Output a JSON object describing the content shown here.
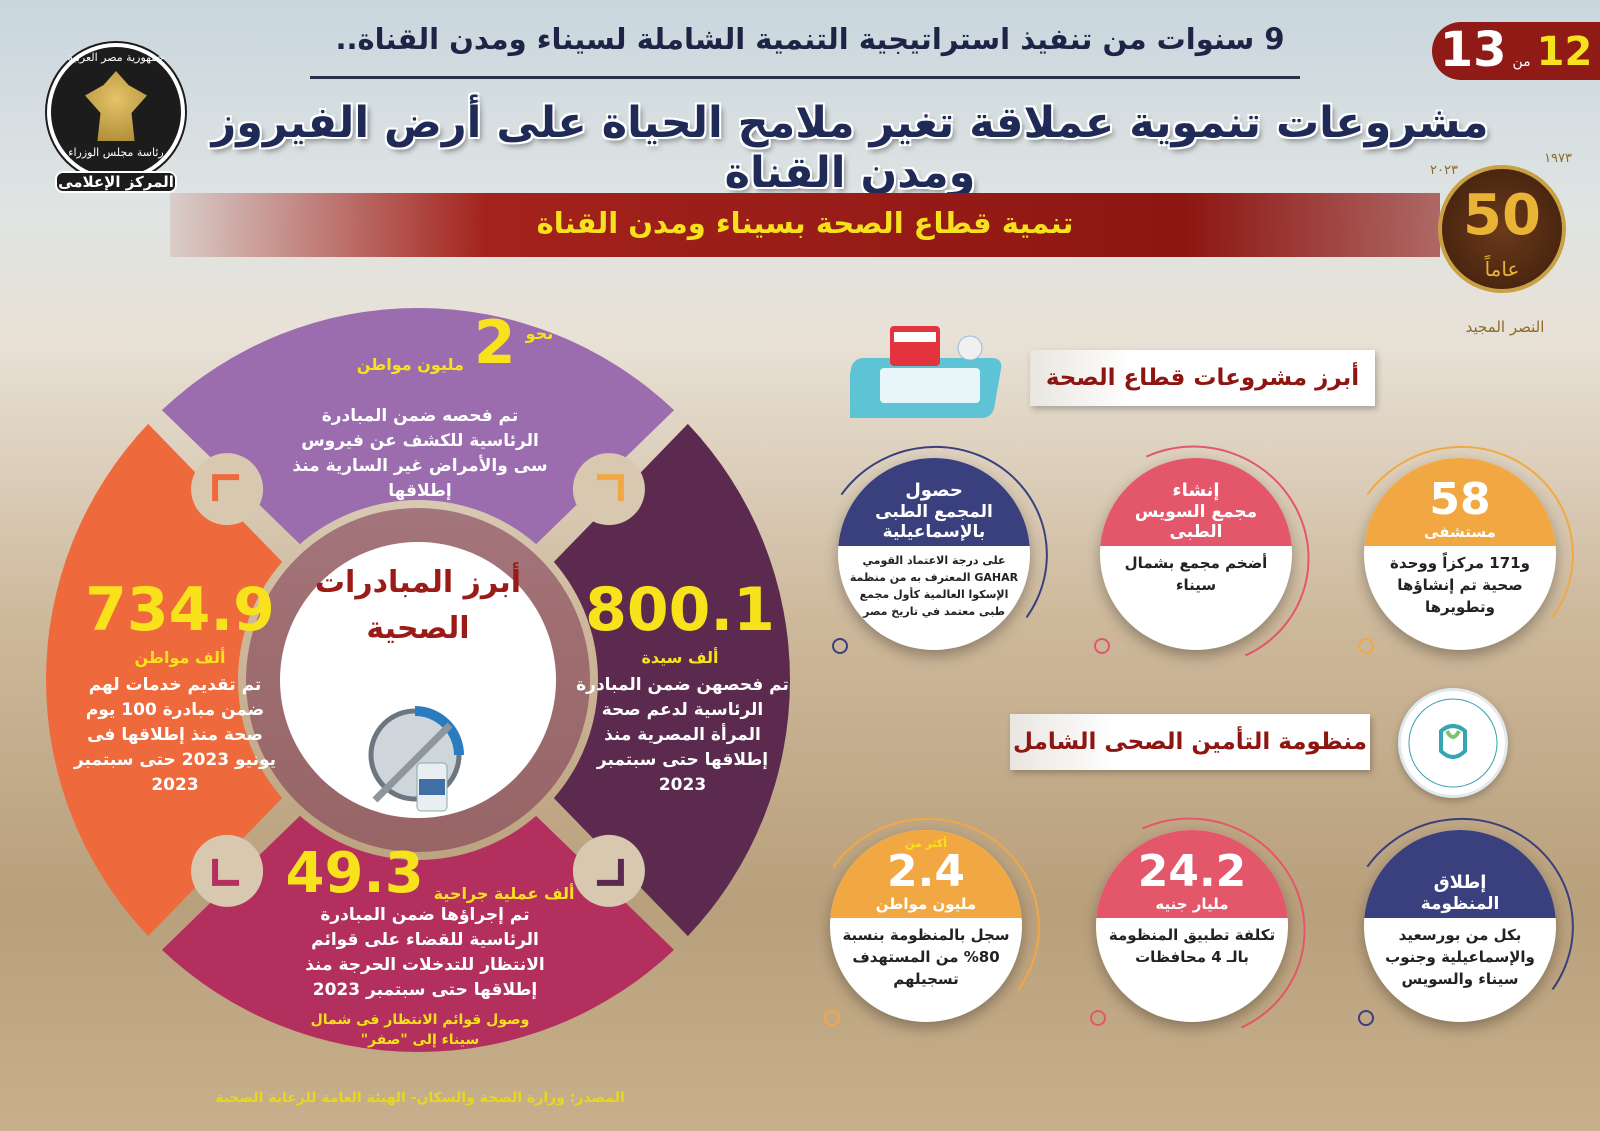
{
  "header": {
    "subtitle": "9 سنوات من تنفيذ استراتيجية التنمية الشاملة لسيناء ومدن القناة..",
    "title": "مشروعات تنموية عملاقة تغير ملامح الحياة على أرض الفيروز ومدن القناة",
    "banner": "تنمية قطاع الصحة بسيناء ومدن القناة"
  },
  "badge": {
    "current": "12",
    "of": "من",
    "total": "13"
  },
  "logo_left": {
    "line1": "جمهورية مصر العربية",
    "line2": "رئاسة مجلس الوزراء",
    "line3": "المركز الإعلامى"
  },
  "logo_fifty": {
    "number": "50",
    "years": "عاماً",
    "from": "١٩٧٣",
    "to": "٢٠٢٣",
    "caption": "النصر المجيد"
  },
  "initiatives": {
    "center_title": "أبرز المبادرات الصحية",
    "top": {
      "prefix": "نحو",
      "value": "2",
      "unit": "مليون مواطن",
      "text": "تم فحصه ضمن المبادرة الرئاسية للكشف عن فيروس سى والأمراض غير السارية منذ إطلاقها"
    },
    "right": {
      "value": "800.1",
      "unit": "ألف سيدة",
      "text": "تم فحصهن ضمن المبادرة الرئاسية لدعم صحة المرأة المصرية منذ إطلاقها حتى سبتمبر 2023"
    },
    "left": {
      "value": "734.9",
      "unit": "ألف مواطن",
      "text": "تم تقديم خدمات لهم ضمن مبادرة 100 يوم صحة منذ إطلاقها فى يونيو 2023 حتى سبتمبر 2023"
    },
    "bottom": {
      "value": "49.3",
      "unit": "ألف عملية جراحية",
      "text": "تم إجراؤها ضمن المبادرة الرئاسية للقضاء على قوائم الانتظار للتدخلات الحرجة منذ إطلاقها حتى سبتمبر 2023",
      "note": "وصول قوائم الانتظار فى شمال سيناء إلى \"صفر\""
    }
  },
  "projects": {
    "heading": "أبرز مشروعات قطاع الصحة",
    "items": [
      {
        "cap": "58",
        "cap2": "مستشفى",
        "text": "و171 مركزاً ووحدة صحية تم إنشاؤها وتطويرها",
        "color": "#f2a842"
      },
      {
        "cap": "إنشاء",
        "cap2": "مجمع السويس الطبى",
        "text": "أضخم مجمع بشمال سيناء",
        "color": "#e4566a"
      },
      {
        "cap": "حصول",
        "cap2": "المجمع الطبى بالإسماعيلية",
        "text": "على درجة الاعتماد القومي GAHAR المعترف به من منظمة الإسكوا العالمية كأول مجمع طبى معتمد في تاريخ مصر",
        "color": "#3a3f7e"
      }
    ]
  },
  "insurance": {
    "heading": "منظومة التأمين الصحى الشامل",
    "authority_logo": "الهيئة العامة للرعاية الصحية - EGYPT HEALTHCARE AUTHORITY",
    "items": [
      {
        "cap": "إطلاق",
        "cap2": "المنظومة",
        "text": "بكل من بورسعيد والإسماعيلية وجنوب سيناء والسويس",
        "color": "#3a3f7e"
      },
      {
        "cap": "24.2",
        "cap2": "مليار جنيه",
        "text": "تكلفة تطبيق المنظومة بالـ 4 محافظات",
        "color": "#e4566a"
      },
      {
        "pre": "أكثر من",
        "cap": "2.4",
        "cap2": "مليون مواطن",
        "text": "سجل بالمنظومة بنسبة 80% من المستهدف تسجيلهم",
        "color": "#f2a842"
      }
    ]
  },
  "source": "المصدر: وزارة الصحة والسكان- الهيئة العامة للرعاية الصحية",
  "colors": {
    "top": "#9b6cae",
    "right": "#5c2a4e",
    "bottom": "#b3305e",
    "left": "#ee6a3c",
    "accent_yellow": "#f7e21b",
    "banner_red": "#8d1612"
  }
}
